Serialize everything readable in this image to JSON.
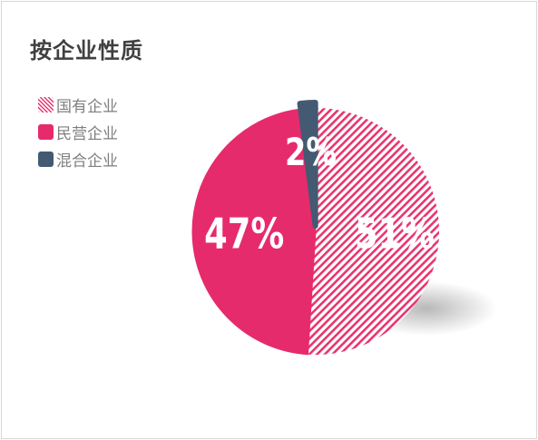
{
  "chart_data": {
    "type": "pie",
    "title": "按企业性质",
    "categories": [
      "国有企业",
      "民营企业",
      "混合企业"
    ],
    "values": [
      51,
      47,
      2
    ],
    "labels": [
      "51%",
      "47%",
      "2%"
    ],
    "colors": {
      "国有企业": "#e8356f",
      "民营企业": "#e62b6c",
      "混合企业": "#435a72"
    },
    "fill_styles": [
      "hatched",
      "solid",
      "solid"
    ],
    "legend_position": "left"
  }
}
